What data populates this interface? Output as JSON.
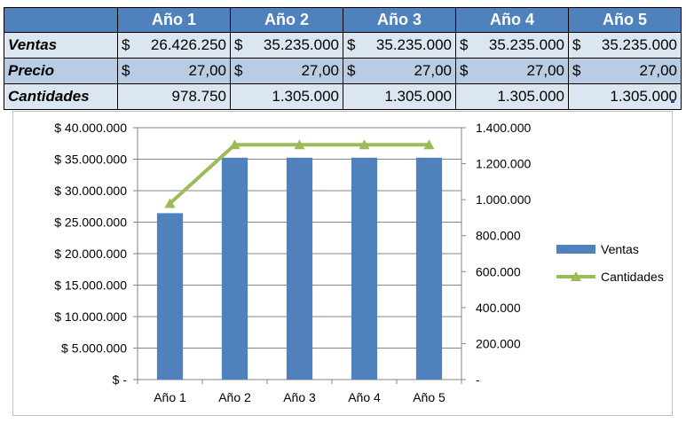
{
  "table": {
    "headers": [
      "",
      "Año 1",
      "Año 2",
      "Año 3",
      "Año 4",
      "Año 5"
    ],
    "rows": [
      {
        "label": "Ventas",
        "currency": "$",
        "values": [
          "26.426.250",
          "35.235.000",
          "35.235.000",
          "35.235.000",
          "35.235.000"
        ]
      },
      {
        "label": "Precio",
        "currency": "$",
        "values": [
          "27,00",
          "27,00",
          "27,00",
          "27,00",
          "27,00"
        ]
      },
      {
        "label": "Cantidades",
        "currency": "",
        "values": [
          "978.750",
          "1.305.000",
          "1.305.000",
          "1.305.000",
          "1.305.000"
        ]
      }
    ]
  },
  "chart_data": {
    "type": "bar",
    "categories": [
      "Año 1",
      "Año 2",
      "Año 3",
      "Año 4",
      "Año 5"
    ],
    "series": [
      {
        "name": "Ventas",
        "type": "bar",
        "axis": "left",
        "color": "#4f81bd",
        "values": [
          26426250,
          35235000,
          35235000,
          35235000,
          35235000
        ]
      },
      {
        "name": "Cantidades",
        "type": "line",
        "axis": "right",
        "color": "#9bbb59",
        "marker": "triangle",
        "values": [
          978750,
          1305000,
          1305000,
          1305000,
          1305000
        ]
      }
    ],
    "y_left": {
      "ylim": [
        0,
        40000000
      ],
      "ticks": [
        0,
        5000000,
        10000000,
        15000000,
        20000000,
        25000000,
        30000000,
        35000000,
        40000000
      ],
      "tick_labels": [
        "$ -",
        "$ 5.000.000",
        "$ 10.000.000",
        "$ 15.000.000",
        "$ 20.000.000",
        "$ 25.000.000",
        "$ 30.000.000",
        "$ 35.000.000",
        "$ 40.000.000"
      ]
    },
    "y_right": {
      "ylim": [
        0,
        1400000
      ],
      "ticks": [
        0,
        200000,
        400000,
        600000,
        800000,
        1000000,
        1200000,
        1400000
      ],
      "tick_labels": [
        "-",
        "200.000",
        "400.000",
        "600.000",
        "800.000",
        "1.000.000",
        "1.200.000",
        "1.400.000"
      ]
    },
    "grid": true,
    "legend": "right"
  }
}
